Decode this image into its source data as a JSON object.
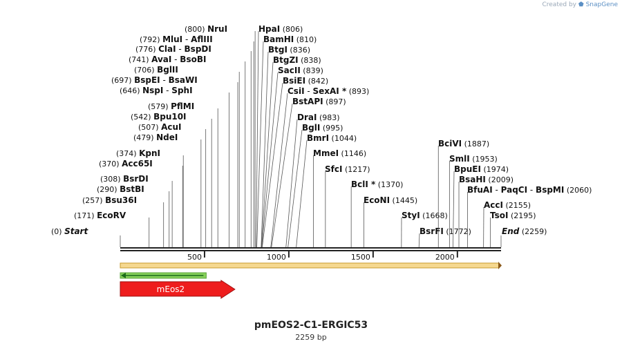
{
  "credit": {
    "prefix": "Created by",
    "brand": "SnapGene"
  },
  "plasmid": {
    "name": "pmEOS2-C1-ERGIC53",
    "length_label": "2259 bp",
    "length_bp": 2259
  },
  "ticks": [
    "500",
    "1000",
    "1500",
    "2000"
  ],
  "tick_positions_bp": [
    500,
    1000,
    1500,
    2000
  ],
  "features": [
    {
      "name": "mEos2",
      "start_bp": 1,
      "end_bp": 680,
      "color": "#ee1d1d",
      "direction": "forward"
    },
    {
      "name": "",
      "start_bp": 1,
      "end_bp": 510,
      "color": "#86d05a",
      "direction": "reverse"
    },
    {
      "name": "",
      "start_bp": 1,
      "end_bp": 2259,
      "color": "#f5d890",
      "direction": "forward"
    }
  ],
  "sites": [
    {
      "names": [
        "Start"
      ],
      "pos": "(0)",
      "bp": 0,
      "italic": true
    },
    {
      "names": [
        "EcoRV"
      ],
      "pos": "(171)",
      "bp": 171
    },
    {
      "names": [
        "Bsu36I"
      ],
      "pos": "(257)",
      "bp": 257
    },
    {
      "names": [
        "BstBI"
      ],
      "pos": "(290)",
      "bp": 290
    },
    {
      "names": [
        "BsrDI"
      ],
      "pos": "(308)",
      "bp": 308
    },
    {
      "names": [
        "Acc65I"
      ],
      "pos": "(370)",
      "bp": 370
    },
    {
      "names": [
        "KpnI"
      ],
      "pos": "(374)",
      "bp": 374
    },
    {
      "names": [
        "NdeI"
      ],
      "pos": "(479)",
      "bp": 479
    },
    {
      "names": [
        "AcuI"
      ],
      "pos": "(507)",
      "bp": 507
    },
    {
      "names": [
        "Bpu10I"
      ],
      "pos": "(542)",
      "bp": 542
    },
    {
      "names": [
        "PflMI"
      ],
      "pos": "(579)",
      "bp": 579
    },
    {
      "names": [
        "NspI",
        "SphI"
      ],
      "pos": "(646)",
      "bp": 646
    },
    {
      "names": [
        "BspEI",
        "BsaWI"
      ],
      "pos": "(697)",
      "bp": 697
    },
    {
      "names": [
        "BglII"
      ],
      "pos": "(706)",
      "bp": 706
    },
    {
      "names": [
        "AvaI",
        "BsoBI"
      ],
      "pos": "(741)",
      "bp": 741
    },
    {
      "names": [
        "ClaI",
        "BspDI"
      ],
      "pos": "(776)",
      "bp": 776
    },
    {
      "names": [
        "MluI",
        "AflIII"
      ],
      "pos": "(792)",
      "bp": 792
    },
    {
      "names": [
        "NruI"
      ],
      "pos": "(800)",
      "bp": 800
    },
    {
      "names": [
        "HpaI"
      ],
      "pos": "(806)",
      "bp": 806
    },
    {
      "names": [
        "BamHI"
      ],
      "pos": "(810)",
      "bp": 810
    },
    {
      "names": [
        "BtgI"
      ],
      "pos": "(836)",
      "bp": 836
    },
    {
      "names": [
        "BtgZI"
      ],
      "pos": "(838)",
      "bp": 838
    },
    {
      "names": [
        "SacII"
      ],
      "pos": "(839)",
      "bp": 839
    },
    {
      "names": [
        "BsiEI"
      ],
      "pos": "(842)",
      "bp": 842
    },
    {
      "names": [
        "CsiI",
        "SexAI *"
      ],
      "pos": "(893)",
      "bp": 893
    },
    {
      "names": [
        "BstAPI"
      ],
      "pos": "(897)",
      "bp": 897
    },
    {
      "names": [
        "DraI"
      ],
      "pos": "(983)",
      "bp": 983
    },
    {
      "names": [
        "BglI"
      ],
      "pos": "(995)",
      "bp": 995
    },
    {
      "names": [
        "BmrI"
      ],
      "pos": "(1044)",
      "bp": 1044
    },
    {
      "names": [
        "MmeI"
      ],
      "pos": "(1146)",
      "bp": 1146
    },
    {
      "names": [
        "SfcI"
      ],
      "pos": "(1217)",
      "bp": 1217
    },
    {
      "names": [
        "BclI *"
      ],
      "pos": "(1370)",
      "bp": 1370
    },
    {
      "names": [
        "EcoNI"
      ],
      "pos": "(1445)",
      "bp": 1445
    },
    {
      "names": [
        "StyI"
      ],
      "pos": "(1668)",
      "bp": 1668
    },
    {
      "names": [
        "BsrFI"
      ],
      "pos": "(1772)",
      "bp": 1772
    },
    {
      "names": [
        "BciVI"
      ],
      "pos": "(1887)",
      "bp": 1887
    },
    {
      "names": [
        "SmlI"
      ],
      "pos": "(1953)",
      "bp": 1953
    },
    {
      "names": [
        "BpuEI"
      ],
      "pos": "(1974)",
      "bp": 1974
    },
    {
      "names": [
        "BsaHI"
      ],
      "pos": "(2009)",
      "bp": 2009
    },
    {
      "names": [
        "BfuAI",
        "PaqCI",
        "BspMI"
      ],
      "pos": "(2060)",
      "bp": 2060
    },
    {
      "names": [
        "AccI"
      ],
      "pos": "(2155)",
      "bp": 2155
    },
    {
      "names": [
        "TsoI"
      ],
      "pos": "(2195)",
      "bp": 2195
    },
    {
      "names": [
        "End"
      ],
      "pos": "(2259)",
      "bp": 2259,
      "italic": true
    }
  ]
}
